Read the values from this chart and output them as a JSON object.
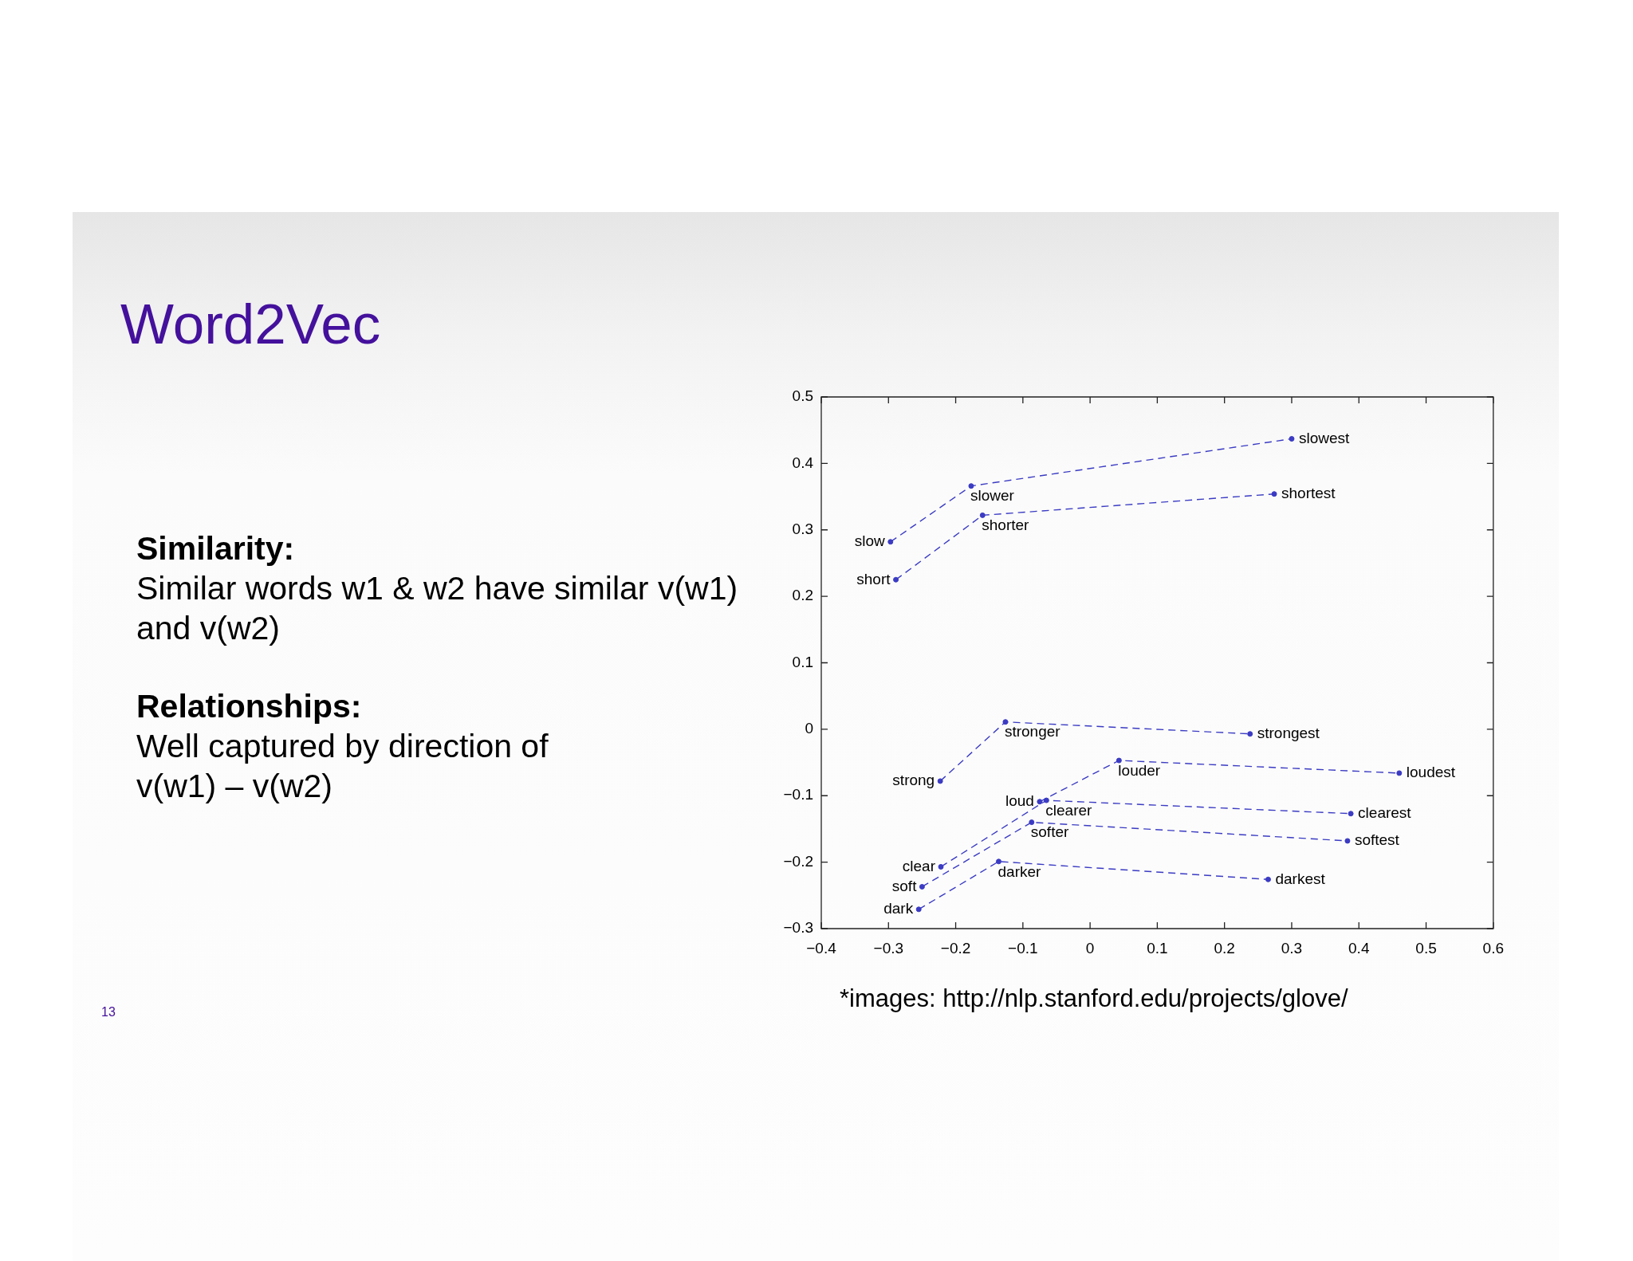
{
  "chart_data": {
    "type": "line",
    "title": "Word2Vec",
    "xlim": [
      -0.4,
      0.6
    ],
    "ylim": [
      -0.3,
      0.5
    ],
    "xticks": [
      {
        "value": -0.4,
        "label": "−0.4"
      },
      {
        "value": -0.3,
        "label": "−0.3"
      },
      {
        "value": -0.2,
        "label": "−0.2"
      },
      {
        "value": -0.1,
        "label": "−0.1"
      },
      0,
      0.1,
      0.2,
      0.3,
      0.4,
      0.5,
      0.6
    ],
    "yticks": [
      {
        "value": -0.3,
        "label": "−0.3"
      },
      {
        "value": -0.2,
        "label": "−0.2"
      },
      {
        "value": -0.1,
        "label": "−0.1"
      },
      0,
      0.1,
      0.2,
      0.3,
      0.4,
      0.5
    ],
    "grid": false,
    "legend": false,
    "marker": "circle",
    "line_style": "dashed",
    "series": [
      {
        "color": "#3b3bc4",
        "x": [
          -0.297,
          -0.177,
          0.3
        ],
        "values": [
          0.282,
          0.366,
          0.437
        ]
      },
      {
        "color": "#3b3bc4",
        "x": [
          -0.289,
          -0.16,
          0.274
        ],
        "values": [
          0.225,
          0.322,
          0.354
        ]
      },
      {
        "color": "#3b3bc4",
        "x": [
          -0.223,
          -0.126,
          0.238
        ],
        "values": [
          -0.078,
          0.011,
          -0.007
        ]
      },
      {
        "color": "#3b3bc4",
        "x": [
          -0.075,
          0.043,
          0.46
        ],
        "values": [
          -0.109,
          -0.047,
          -0.066
        ]
      },
      {
        "color": "#3b3bc4",
        "x": [
          -0.222,
          -0.065,
          0.388
        ],
        "values": [
          -0.207,
          -0.107,
          -0.127
        ]
      },
      {
        "color": "#3b3bc4",
        "x": [
          -0.25,
          -0.087,
          0.383
        ],
        "values": [
          -0.237,
          -0.14,
          -0.168
        ]
      },
      {
        "color": "#3b3bc4",
        "x": [
          -0.255,
          -0.136,
          0.265
        ],
        "values": [
          -0.271,
          -0.199,
          -0.226
        ]
      }
    ],
    "annotations": [
      {
        "text": "slow",
        "x": -0.297,
        "y": 0.282
      },
      {
        "text": "slower",
        "x": -0.177,
        "y": 0.366
      },
      {
        "text": "slowest",
        "x": 0.3,
        "y": 0.437
      },
      {
        "text": "short",
        "x": -0.289,
        "y": 0.225
      },
      {
        "text": "shorter",
        "x": -0.16,
        "y": 0.322
      },
      {
        "text": "shortest",
        "x": 0.274,
        "y": 0.354
      },
      {
        "text": "strong",
        "x": -0.223,
        "y": -0.078
      },
      {
        "text": "stronger",
        "x": -0.126,
        "y": 0.011
      },
      {
        "text": "strongest",
        "x": 0.238,
        "y": -0.007
      },
      {
        "text": "loud",
        "x": -0.075,
        "y": -0.109
      },
      {
        "text": "louder",
        "x": 0.043,
        "y": -0.047
      },
      {
        "text": "loudest",
        "x": 0.46,
        "y": -0.066
      },
      {
        "text": "clear",
        "x": -0.222,
        "y": -0.207
      },
      {
        "text": "clearer",
        "x": -0.065,
        "y": -0.107
      },
      {
        "text": "clearest",
        "x": 0.388,
        "y": -0.127
      },
      {
        "text": "soft",
        "x": -0.25,
        "y": -0.237
      },
      {
        "text": "softer",
        "x": -0.087,
        "y": -0.14
      },
      {
        "text": "softest",
        "x": 0.383,
        "y": -0.168
      },
      {
        "text": "dark",
        "x": -0.255,
        "y": -0.271
      },
      {
        "text": "darker",
        "x": -0.136,
        "y": -0.199
      },
      {
        "text": "darkest",
        "x": 0.265,
        "y": -0.226
      },
      "Similarity:",
      "Similar words w1 & w2 have similar v(w1)\nand v(w2)",
      "Relationships:",
      "Well captured by direction of\nv(w1) – v(w2)",
      "*images: http://nlp.stanford.edu/projects/glove/",
      "13"
    ]
  }
}
